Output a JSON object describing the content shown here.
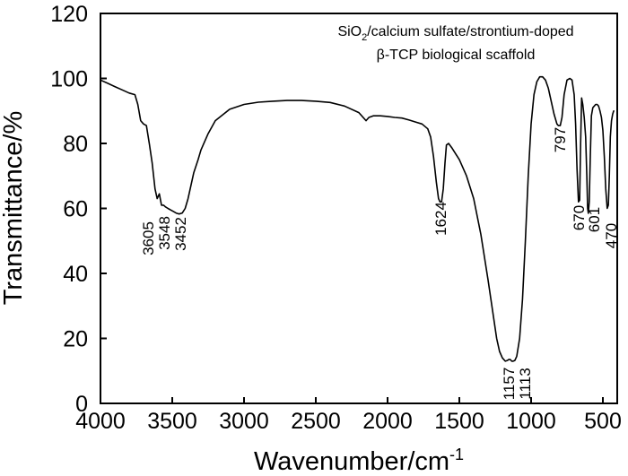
{
  "chart_data": {
    "type": "line",
    "xlabel": "Wavenumber/cm",
    "xlabel_sup": "-1",
    "ylabel": "Transmittance/%",
    "xlim": [
      4000,
      400
    ],
    "ylim": [
      0,
      120
    ],
    "x_ticks": [
      4000,
      3500,
      3000,
      2500,
      2000,
      1500,
      1000,
      500
    ],
    "y_ticks": [
      0,
      20,
      40,
      60,
      80,
      100,
      120
    ],
    "grid": false,
    "annotation_line1_pre": "SiO",
    "annotation_line1_sub": "2",
    "annotation_line1_post": "/calcium sulfate/strontium-doped",
    "annotation_line2": "β-TCP biological scaffold",
    "peak_labels": [
      "3605",
      "3548",
      "3452",
      "1624",
      "1157",
      "1113",
      "797",
      "670",
      "601",
      "470"
    ],
    "series": [
      {
        "x": [
          4000,
          3950,
          3900,
          3850,
          3800,
          3760,
          3740,
          3720,
          3700,
          3680,
          3660,
          3640,
          3620,
          3605,
          3590,
          3575,
          3560,
          3548,
          3530,
          3510,
          3490,
          3470,
          3452,
          3430,
          3410,
          3390,
          3370,
          3350,
          3320,
          3300,
          3250,
          3200,
          3100,
          3000,
          2900,
          2800,
          2700,
          2600,
          2500,
          2400,
          2300,
          2200,
          2150,
          2130,
          2100,
          2050,
          2000,
          1950,
          1900,
          1850,
          1800,
          1760,
          1720,
          1700,
          1680,
          1660,
          1645,
          1635,
          1624,
          1612,
          1600,
          1590,
          1575,
          1550,
          1500,
          1450,
          1400,
          1350,
          1300,
          1280,
          1260,
          1240,
          1220,
          1200,
          1180,
          1165,
          1157,
          1145,
          1135,
          1125,
          1113,
          1100,
          1080,
          1060,
          1040,
          1020,
          1000,
          980,
          960,
          940,
          920,
          900,
          880,
          860,
          840,
          820,
          810,
          797,
          785,
          770,
          750,
          730,
          715,
          700,
          690,
          680,
          670,
          662,
          655,
          648,
          640,
          630,
          620,
          612,
          606,
          601,
          595,
          588,
          580,
          570,
          560,
          550,
          540,
          530,
          520,
          510,
          500,
          490,
          480,
          470,
          462,
          455,
          448,
          440,
          432,
          425,
          420
        ],
        "values": [
          99.5,
          98.5,
          97.5,
          96.5,
          95.5,
          95.0,
          92.0,
          87.0,
          86.0,
          85.5,
          80.0,
          74.0,
          66.0,
          63.0,
          64.5,
          61.0,
          61.0,
          60.5,
          60.0,
          59.5,
          59.0,
          58.5,
          58.3,
          58.6,
          60.0,
          63.0,
          67.0,
          71.0,
          75.0,
          78.0,
          83.0,
          87.0,
          90.5,
          92.0,
          92.7,
          93.0,
          93.2,
          93.2,
          93.0,
          92.6,
          91.5,
          89.5,
          87.0,
          88.0,
          88.5,
          88.5,
          88.3,
          88.0,
          87.8,
          87.2,
          86.5,
          86.0,
          84.5,
          82.0,
          76.0,
          68.0,
          63.0,
          62.0,
          62.0,
          66.0,
          74.0,
          79.5,
          80.0,
          78.5,
          75.0,
          70.0,
          63.0,
          52.0,
          38.0,
          32.0,
          26.0,
          20.0,
          16.0,
          14.0,
          13.0,
          13.2,
          13.5,
          13.5,
          13.0,
          13.0,
          13.2,
          14.5,
          20.0,
          32.0,
          50.0,
          70.0,
          86.0,
          95.0,
          99.0,
          100.5,
          100.5,
          99.5,
          97.0,
          93.0,
          89.0,
          86.0,
          85.5,
          85.5,
          88.0,
          95.0,
          99.5,
          100.0,
          99.5,
          95.0,
          86.0,
          72.0,
          62.0,
          62.5,
          80.0,
          94.0,
          92.0,
          88.0,
          82.0,
          70.0,
          60.0,
          58.5,
          62.0,
          75.0,
          88.5,
          91.0,
          91.5,
          92.0,
          92.0,
          91.5,
          90.0,
          88.0,
          84.0,
          76.0,
          66.0,
          60.0,
          61.0,
          70.0,
          82.0,
          87.0,
          89.0,
          90.0,
          90.0
        ]
      }
    ]
  }
}
